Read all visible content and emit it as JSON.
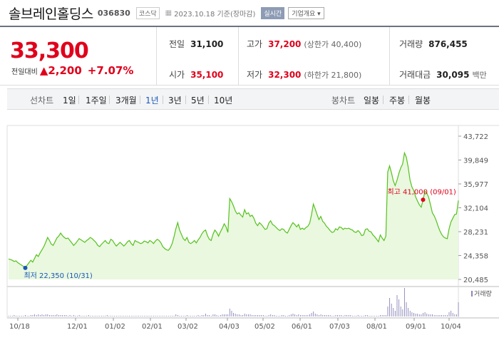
{
  "header": {
    "name": "솔브레인홀딩스",
    "code": "036830",
    "market": "코스닥",
    "date": "2023.10.18 기준(장마감)",
    "realtime_label": "실시간",
    "company_label": "기업개요 ▾"
  },
  "summary": {
    "price": "33,300",
    "change_label": "전일대비",
    "change": "▲2,200",
    "change_pct": "+7.07%",
    "prev_label": "전일",
    "prev": "31,100",
    "open_label": "시가",
    "open": "35,100",
    "high_label": "고가",
    "high": "37,200",
    "upper_limit": "(상한가 40,400)",
    "low_label": "저가",
    "low": "32,300",
    "lower_limit": "(하한가 21,800)",
    "volume_label": "거래량",
    "volume": "876,455",
    "amount_label": "거래대금",
    "amount": "30,095",
    "amount_unit": "백만"
  },
  "toolbar": {
    "chart_label": "선차트",
    "ranges": [
      "1일",
      "1주일",
      "3개월",
      "1년",
      "3년",
      "5년",
      "10년"
    ],
    "selected": "1년",
    "candle_label": "봉차트",
    "candles": [
      "일봉",
      "주봉",
      "월봉"
    ]
  },
  "colors": {
    "up": "#e0001b",
    "line": "#55c11e",
    "fill": "#e9f8df",
    "low": "#1a56b8",
    "selected": "#1a56b8"
  },
  "chart_data": {
    "type": "area",
    "y_ticks": [
      "43,722",
      "39,849",
      "35,977",
      "32,104",
      "28,231",
      "24,358",
      "20,485"
    ],
    "ylim": [
      20485,
      43722
    ],
    "x_ticks": [
      "10/18",
      "12/01",
      "01/02",
      "02/01",
      "03/02",
      "04/03",
      "05/02",
      "06/01",
      "07/03",
      "08/01",
      "09/01",
      "10/04"
    ],
    "x_index_range": [
      0,
      248
    ],
    "values": [
      23800,
      23700,
      23600,
      23400,
      23500,
      23200,
      23000,
      22800,
      22600,
      22350,
      22800,
      23200,
      23600,
      23300,
      23900,
      24500,
      24200,
      24800,
      25300,
      25800,
      26500,
      27300,
      26800,
      26200,
      26000,
      26600,
      27200,
      27500,
      28000,
      27600,
      27300,
      27100,
      27200,
      26800,
      26400,
      26000,
      26300,
      26700,
      27100,
      26900,
      26700,
      26500,
      26800,
      27000,
      27300,
      27100,
      26800,
      26500,
      26000,
      25800,
      26200,
      26500,
      26800,
      26400,
      26300,
      27000,
      26800,
      26300,
      25900,
      26200,
      26500,
      26200,
      25900,
      26200,
      26600,
      26800,
      26300,
      26000,
      26800,
      26600,
      26500,
      26300,
      26400,
      26700,
      26600,
      26400,
      26800,
      26600,
      26300,
      26700,
      27000,
      26800,
      26400,
      25800,
      25500,
      25300,
      25200,
      25600,
      26300,
      27400,
      28700,
      29700,
      28500,
      27800,
      27100,
      26800,
      27300,
      26500,
      26300,
      26500,
      26800,
      26400,
      26900,
      27300,
      27900,
      28300,
      28500,
      27600,
      27000,
      26800,
      27800,
      28500,
      28100,
      27500,
      28200,
      28800,
      29500,
      29000,
      28100,
      33600,
      33100,
      32400,
      31600,
      31100,
      31300,
      30900,
      30600,
      31800,
      31100,
      31300,
      30700,
      30900,
      30400,
      29600,
      29200,
      29700,
      29400,
      29000,
      28600,
      28700,
      29600,
      30000,
      29400,
      29200,
      28900,
      28600,
      28400,
      28700,
      28600,
      28200,
      28000,
      28600,
      29200,
      29700,
      29400,
      29000,
      29400,
      28600,
      28800,
      28600,
      28900,
      29100,
      29600,
      31000,
      32700,
      31900,
      31000,
      30200,
      30700,
      29900,
      29600,
      29100,
      28800,
      28400,
      28100,
      28200,
      28700,
      28500,
      29000,
      28900,
      28600,
      28800,
      28700,
      28800,
      28600,
      28500,
      28200,
      28100,
      28400,
      28100,
      27600,
      27700,
      28600,
      28700,
      28300,
      28200,
      27700,
      27400,
      27000,
      26600,
      27700,
      27200,
      26800,
      27500,
      37900,
      38900,
      37800,
      36500,
      35700,
      36600,
      37700,
      38600,
      39200,
      41000,
      40300,
      38700,
      36600,
      35500,
      34900,
      33900,
      33200,
      32600,
      32200,
      33400,
      34800,
      34500,
      33800,
      32600,
      31300,
      30800,
      30100,
      29200,
      28400,
      27800,
      27400,
      27200,
      27100,
      28700,
      29800,
      30400,
      31000,
      31100,
      33300
    ],
    "volume": [
      1,
      1,
      1,
      2,
      1,
      1,
      1,
      1,
      1,
      2,
      1,
      1,
      2,
      2,
      3,
      2,
      3,
      2,
      3,
      2,
      3,
      3,
      2,
      2,
      2,
      2,
      3,
      2,
      2,
      2,
      2,
      2,
      1,
      2,
      1,
      2,
      1,
      1,
      2,
      1,
      1,
      1,
      1,
      2,
      1,
      1,
      1,
      1,
      1,
      1,
      1,
      1,
      1,
      2,
      1,
      1,
      1,
      1,
      1,
      1,
      1,
      1,
      1,
      1,
      1,
      1,
      1,
      1,
      1,
      1,
      1,
      1,
      1,
      1,
      1,
      1,
      1,
      1,
      1,
      1,
      1,
      1,
      1,
      1,
      1,
      1,
      1,
      1,
      1,
      1,
      3,
      2,
      1,
      1,
      1,
      1,
      2,
      1,
      1,
      1,
      1,
      1,
      2,
      1,
      2,
      2,
      4,
      2,
      2,
      1,
      3,
      3,
      2,
      1,
      2,
      3,
      3,
      3,
      3,
      11,
      8,
      5,
      4,
      3,
      3,
      2,
      2,
      4,
      3,
      3,
      3,
      2,
      2,
      2,
      2,
      2,
      2,
      2,
      1,
      1,
      2,
      3,
      2,
      2,
      1,
      1,
      1,
      2,
      2,
      1,
      1,
      2,
      3,
      4,
      3,
      2,
      3,
      2,
      2,
      2,
      2,
      2,
      3,
      5,
      7,
      4,
      3,
      2,
      3,
      2,
      2,
      2,
      2,
      2,
      1,
      1,
      2,
      2,
      2,
      2,
      1,
      2,
      2,
      2,
      2,
      1,
      1,
      1,
      2,
      1,
      1,
      1,
      2,
      2,
      1,
      1,
      1,
      1,
      1,
      1,
      2,
      2,
      2,
      2,
      14,
      26,
      18,
      12,
      8,
      30,
      24,
      14,
      10,
      40,
      20,
      12,
      8,
      6,
      5,
      4,
      4,
      3,
      3,
      5,
      6,
      4,
      3,
      3,
      3,
      2,
      2,
      2,
      2,
      2,
      2,
      2,
      2,
      6,
      8,
      5,
      3,
      3,
      20
    ],
    "high_label": "최고 41,000 (09/01)",
    "high_index": 223,
    "low_label": "최저 22,350 (10/31)",
    "low_index": 9,
    "volume_label": "거래량"
  }
}
